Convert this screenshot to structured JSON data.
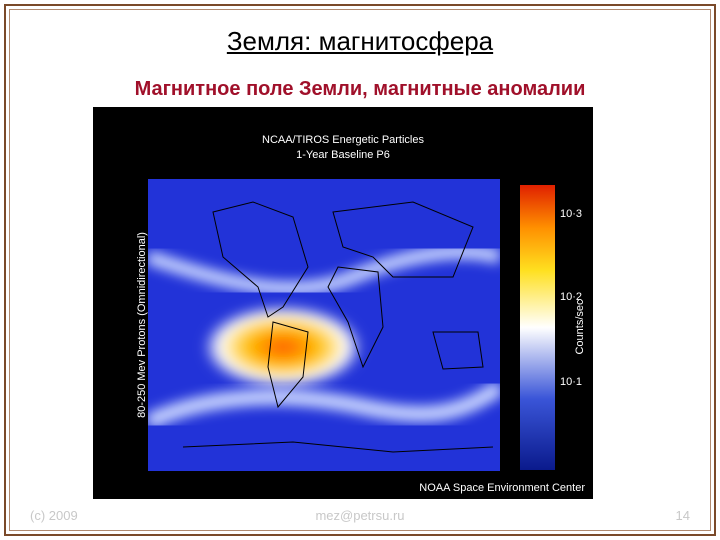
{
  "header": {
    "title": "Земля: магнитосфера",
    "subtitle": "Магнитное поле Земли, магнитные аномалии"
  },
  "figure": {
    "title_line1": "NCAA/TIROS Energetic Particles",
    "title_line2": "1-Year Baseline P6",
    "y_label": "80-250 Mev Protons (Omnidirectional)",
    "colorbar_ticks": [
      "10·3",
      "10·2",
      "10·1"
    ],
    "colorbar_label": "Counts/sec",
    "credit": "NOAA Space Environment Center"
  },
  "footer": {
    "left": "(c) 2009",
    "center": "mez@petrsu.ru",
    "page": "14"
  }
}
